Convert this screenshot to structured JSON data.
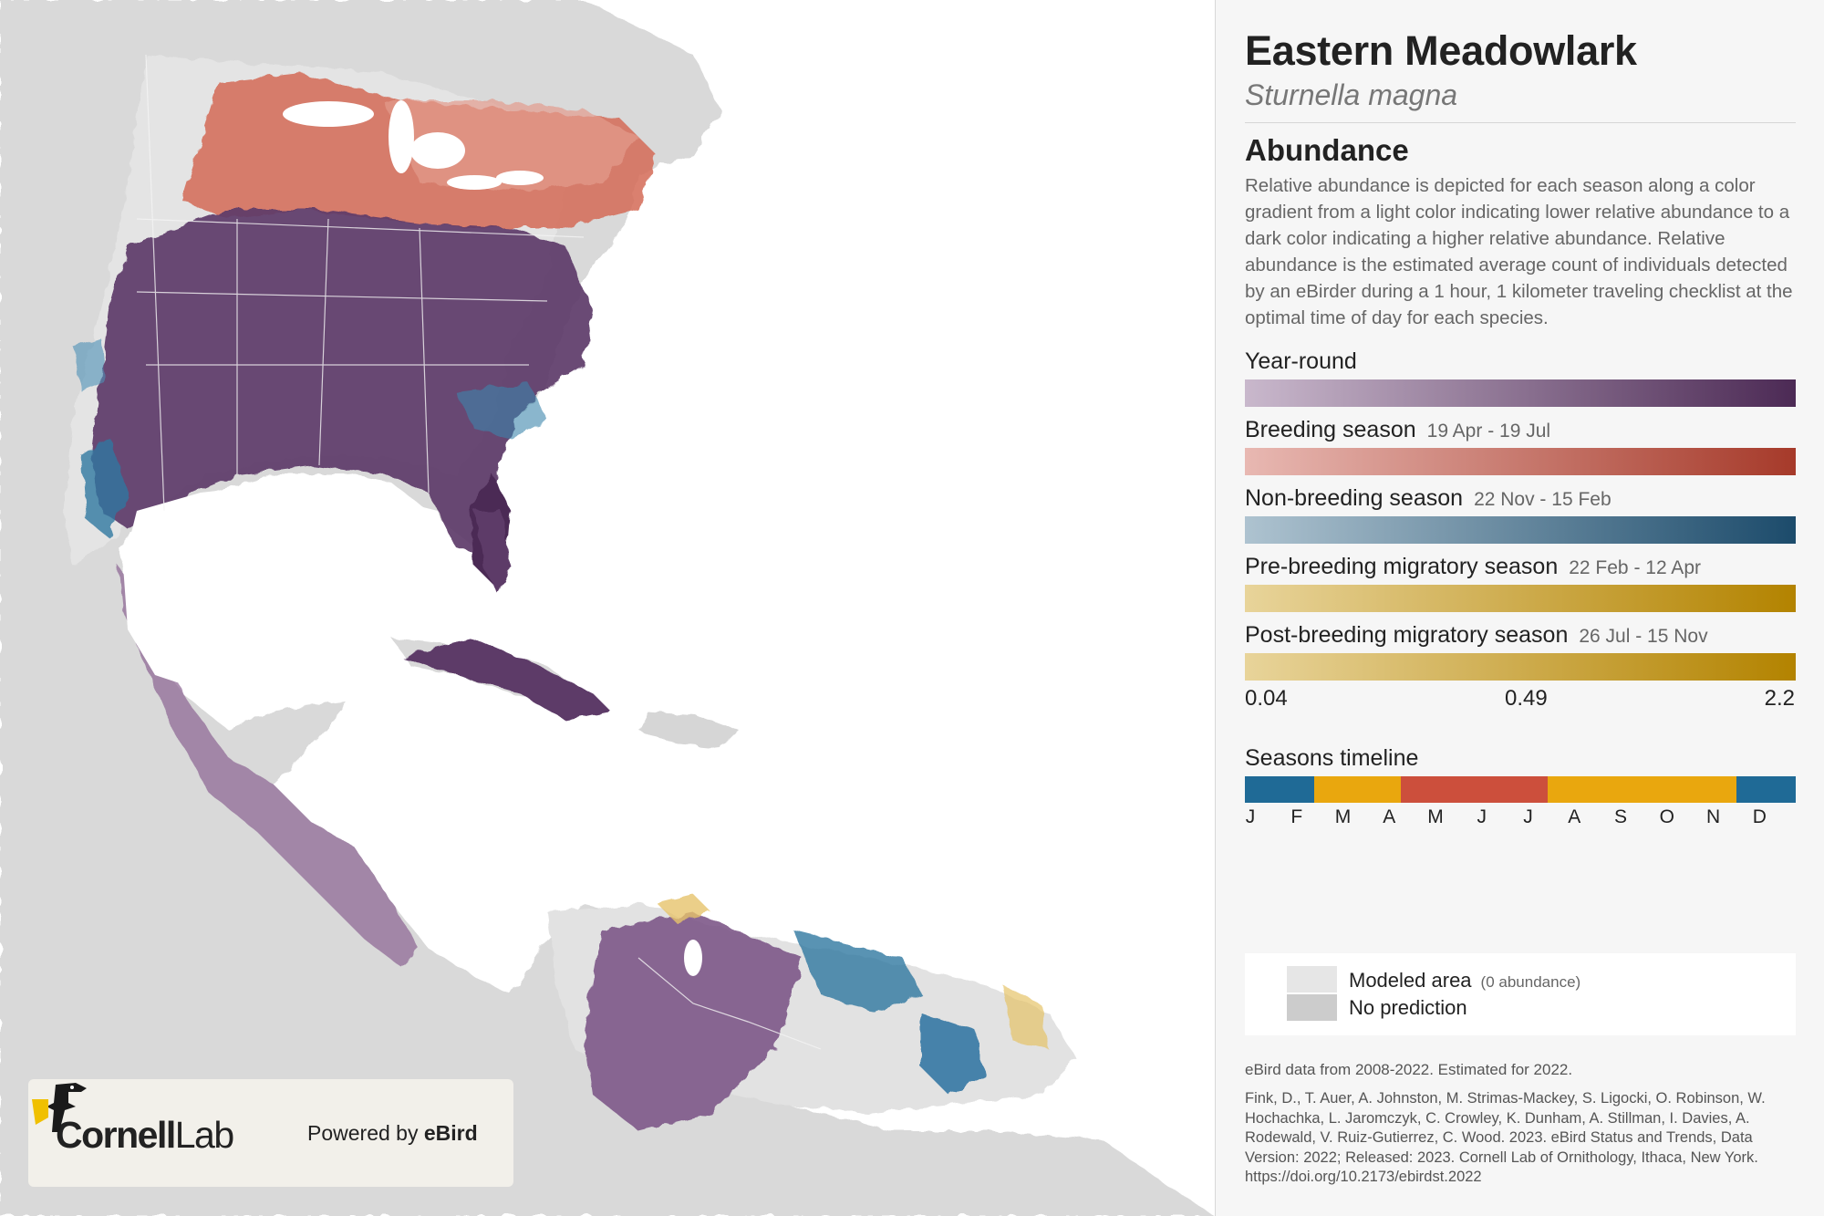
{
  "species": {
    "common_name": "Eastern Meadowlark",
    "scientific_name": "Sturnella magna"
  },
  "abundance": {
    "heading": "Abundance",
    "description": "Relative abundance is depicted for each season along a color gradient from a light color indicating lower relative abundance to a dark color indicating a higher relative abundance. Relative abundance is the estimated average count of individuals detected by an eBirder during a 1 hour, 1 kilometer traveling checklist at the optimal time of day for each species."
  },
  "seasons": [
    {
      "label": "Year-round",
      "dates": "",
      "color_light": "#c9b8cc",
      "color_dark": "#4c2a55"
    },
    {
      "label": "Breeding season",
      "dates": "19 Apr - 19 Jul",
      "color_light": "#e8b8b2",
      "color_dark": "#a63a2a"
    },
    {
      "label": "Non-breeding season",
      "dates": "22 Nov - 15 Feb",
      "color_light": "#aec3d0",
      "color_dark": "#1c4b6b"
    },
    {
      "label": "Pre-breeding migratory season",
      "dates": "22 Feb - 12 Apr",
      "color_light": "#e8d49a",
      "color_dark": "#b38300"
    },
    {
      "label": "Post-breeding migratory season",
      "dates": "26 Jul - 15 Nov",
      "color_light": "#e8d49a",
      "color_dark": "#b38300"
    }
  ],
  "scale": {
    "min": "0.04",
    "mid": "0.49",
    "max": "2.2"
  },
  "timeline": {
    "title": "Seasons timeline",
    "months": [
      "J",
      "F",
      "M",
      "A",
      "M",
      "J",
      "J",
      "A",
      "S",
      "O",
      "N",
      "D"
    ],
    "segments": [
      {
        "season": "non-breeding",
        "color": "#1f6a96",
        "start_month": 0,
        "end_month": 1.5
      },
      {
        "season": "pre-breeding",
        "color": "#e9a70e",
        "start_month": 1.5,
        "end_month": 3.4
      },
      {
        "season": "breeding",
        "color": "#cc4f3c",
        "start_month": 3.4,
        "end_month": 6.6
      },
      {
        "season": "post-breeding",
        "color": "#e9a70e",
        "start_month": 6.6,
        "end_month": 10.7
      },
      {
        "season": "non-breeding",
        "color": "#1f6a96",
        "start_month": 10.7,
        "end_month": 12
      }
    ]
  },
  "legend": {
    "modeled_area": "Modeled area",
    "modeled_area_note": "(0 abundance)",
    "no_prediction": "No prediction",
    "modeled_color": "#e6e6e6",
    "no_prediction_color": "#cccccc"
  },
  "credits": {
    "data_range": "eBird data from 2008-2022. Estimated for 2022.",
    "citation": "Fink, D., T. Auer, A. Johnston, M. Strimas-Mackey, S. Ligocki, O. Robinson, W. Hochachka, L. Jaromczyk, C. Crowley, K. Dunham, A. Stillman, I. Davies, A. Rodewald, V. Ruiz-Gutierrez, C. Wood. 2023. eBird Status and Trends, Data Version: 2022; Released: 2023. Cornell Lab of Ornithology, Ithaca, New York. https://doi.org/10.2173/ebirdst.2022"
  },
  "branding": {
    "cornell_bold": "Cornell",
    "cornell_light": "Lab",
    "powered_by": "Powered by",
    "ebird": "eBird"
  },
  "map_colors": {
    "water": "#ffffff",
    "land_no_prediction": "#d9d9d9",
    "land_modeled": "#e6e6e6",
    "border": "#f7f7f7"
  }
}
